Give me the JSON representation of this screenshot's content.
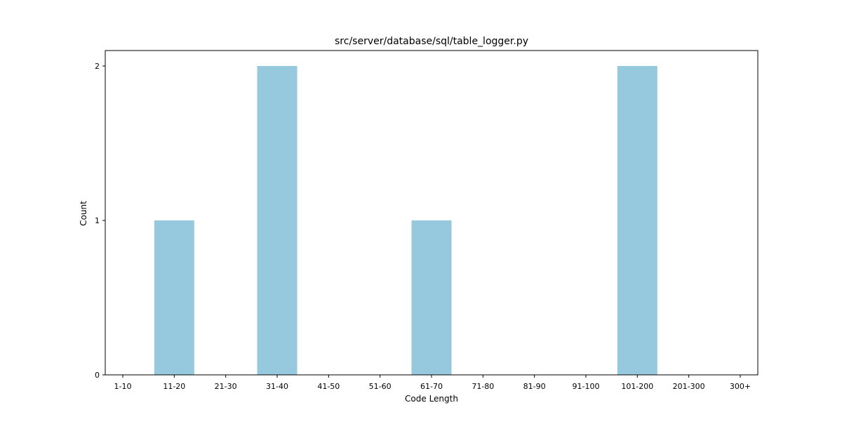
{
  "chart_data": {
    "type": "bar",
    "title": "src/server/database/sql/table_logger.py",
    "xlabel": "Code Length",
    "ylabel": "Count",
    "categories": [
      "1-10",
      "11-20",
      "21-30",
      "31-40",
      "41-50",
      "51-60",
      "61-70",
      "71-80",
      "81-90",
      "91-100",
      "101-200",
      "201-300",
      "300+"
    ],
    "values": [
      0,
      1,
      0,
      2,
      0,
      0,
      1,
      0,
      0,
      0,
      2,
      0,
      0
    ],
    "ylim": [
      0,
      2.1
    ],
    "yticks": [
      0,
      1,
      2
    ],
    "grid": false,
    "legend": "none",
    "bar_color": "#96c9dd"
  }
}
